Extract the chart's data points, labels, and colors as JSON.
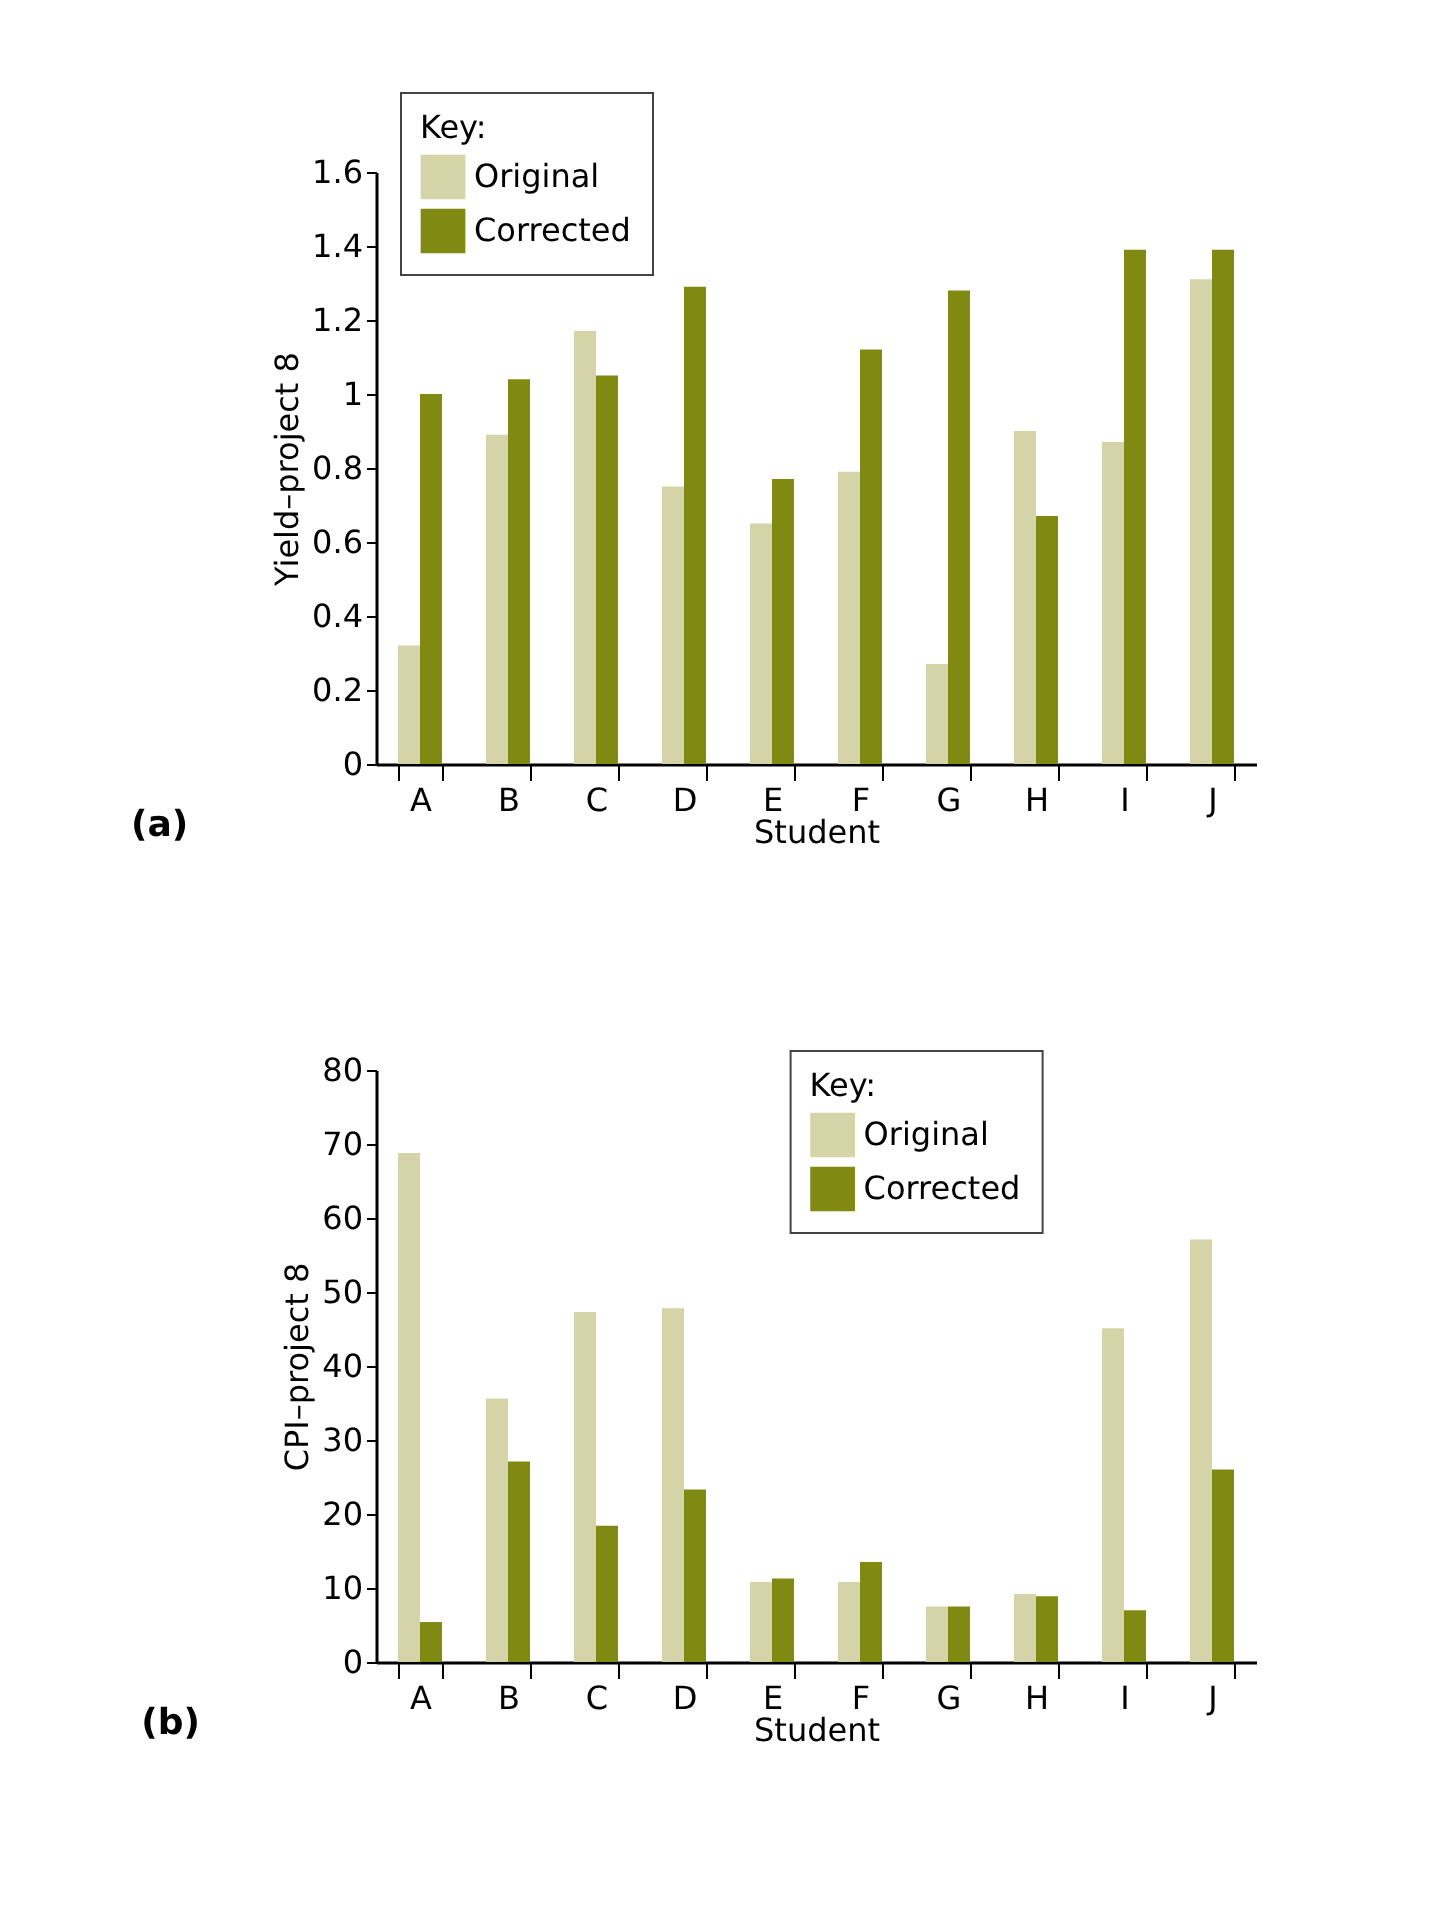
{
  "chart_data": [
    {
      "type": "bar",
      "title": "(a)",
      "xlabel": "Student",
      "ylabel": "Yield–project 8",
      "legend_title": "Key:",
      "legend": "top left",
      "categories": [
        "A",
        "B",
        "C",
        "D",
        "E",
        "F",
        "G",
        "H",
        "I",
        "J"
      ],
      "series": [
        {
          "name": "Original",
          "color": "#d4d4a8",
          "values": [
            0.32,
            0.89,
            1.17,
            0.75,
            0.65,
            0.79,
            0.27,
            0.9,
            0.87,
            1.31
          ]
        },
        {
          "name": "Corrected",
          "color": "#808a12",
          "values": [
            1.0,
            1.04,
            1.05,
            1.29,
            0.77,
            1.12,
            1.28,
            0.67,
            1.39,
            1.39
          ]
        }
      ],
      "ylim": [
        0,
        1.6
      ],
      "yticks": [
        0,
        0.2,
        0.4,
        0.6,
        0.8,
        1,
        1.2,
        1.4,
        1.6
      ],
      "grid": false
    },
    {
      "type": "bar",
      "title": "(b)",
      "xlabel": "Student",
      "ylabel": "CPI–project 8",
      "legend_title": "Key:",
      "legend": "top",
      "categories": [
        "A",
        "B",
        "C",
        "D",
        "E",
        "F",
        "G",
        "H",
        "I",
        "J"
      ],
      "series": [
        {
          "name": "Original",
          "color": "#d4d4a8",
          "values": [
            68.8,
            35.6,
            47.3,
            47.8,
            10.8,
            10.8,
            7.5,
            9.2,
            45.1,
            57.1
          ]
        },
        {
          "name": "Corrected",
          "color": "#808a12",
          "values": [
            5.4,
            27.1,
            18.4,
            23.3,
            11.3,
            13.5,
            7.5,
            8.9,
            7.0,
            26.0
          ]
        }
      ],
      "ylim": [
        0,
        80
      ],
      "yticks": [
        0,
        10,
        20,
        30,
        40,
        50,
        60,
        70,
        80
      ],
      "grid": false
    }
  ]
}
